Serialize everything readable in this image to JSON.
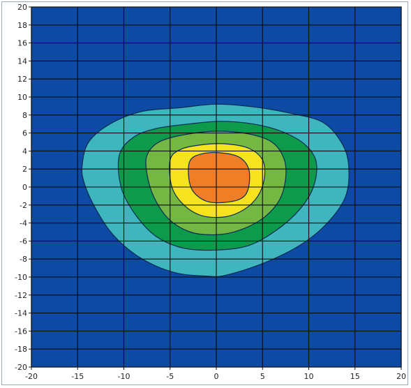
{
  "chart_data": {
    "type": "heatmap",
    "subtype": "filled-contour",
    "title": "",
    "xlabel": "",
    "ylabel": "",
    "xlim": [
      -20,
      20
    ],
    "ylim": [
      -20,
      20
    ],
    "x_ticks": [
      -20,
      -15,
      -10,
      -5,
      0,
      5,
      10,
      15,
      20
    ],
    "y_ticks": [
      -20,
      -18,
      -16,
      -14,
      -12,
      -10,
      -8,
      -6,
      -4,
      -2,
      0,
      2,
      4,
      6,
      8,
      10,
      12,
      14,
      16,
      18,
      20
    ],
    "grid": true,
    "colors": {
      "background": "#0d4aa3",
      "gridline": "#0a0a0a",
      "contour_edge": "#0a2a55",
      "plot_border": "#1a1a1a"
    },
    "levels": [
      {
        "level": 1,
        "color": "#3fb6bd",
        "boundary": [
          [
            -14.5,
            2.5
          ],
          [
            -13.8,
            5.0
          ],
          [
            -11.5,
            7.0
          ],
          [
            -8.0,
            8.4
          ],
          [
            -4.0,
            8.8
          ],
          [
            0.0,
            9.2
          ],
          [
            4.0,
            8.9
          ],
          [
            8.0,
            8.2
          ],
          [
            11.5,
            7.2
          ],
          [
            13.5,
            5.0
          ],
          [
            14.3,
            2.5
          ],
          [
            14.0,
            -1.0
          ],
          [
            12.0,
            -4.0
          ],
          [
            9.0,
            -6.5
          ],
          [
            5.0,
            -8.5
          ],
          [
            1.0,
            -9.8
          ],
          [
            -1.0,
            -9.9
          ],
          [
            -4.5,
            -9.5
          ],
          [
            -8.0,
            -8.0
          ],
          [
            -11.0,
            -5.5
          ],
          [
            -13.0,
            -2.5
          ],
          [
            -14.3,
            0.5
          ]
        ]
      },
      {
        "level": 2,
        "color": "#0d9a4a",
        "boundary": [
          [
            -10.5,
            3.5
          ],
          [
            -9.0,
            5.5
          ],
          [
            -6.5,
            6.5
          ],
          [
            -3.0,
            7.0
          ],
          [
            0.5,
            7.3
          ],
          [
            4.0,
            7.0
          ],
          [
            7.0,
            6.2
          ],
          [
            9.5,
            4.8
          ],
          [
            10.8,
            2.8
          ],
          [
            10.5,
            0.0
          ],
          [
            9.0,
            -2.5
          ],
          [
            6.5,
            -4.8
          ],
          [
            3.5,
            -6.5
          ],
          [
            0.0,
            -7.0
          ],
          [
            -3.5,
            -6.8
          ],
          [
            -6.5,
            -5.5
          ],
          [
            -8.8,
            -3.0
          ],
          [
            -10.3,
            0.0
          ]
        ]
      },
      {
        "level": 3,
        "color": "#74b843",
        "boundary": [
          [
            -7.5,
            3.5
          ],
          [
            -6.2,
            5.0
          ],
          [
            -3.5,
            5.8
          ],
          [
            0.0,
            6.2
          ],
          [
            3.5,
            5.9
          ],
          [
            6.0,
            5.0
          ],
          [
            7.3,
            3.2
          ],
          [
            7.5,
            1.0
          ],
          [
            6.8,
            -1.5
          ],
          [
            5.0,
            -3.5
          ],
          [
            2.5,
            -4.8
          ],
          [
            0.0,
            -5.3
          ],
          [
            -2.8,
            -5.0
          ],
          [
            -5.2,
            -3.5
          ],
          [
            -6.8,
            -1.0
          ],
          [
            -7.5,
            1.5
          ]
        ]
      },
      {
        "level": 4,
        "color": "#f5e320",
        "boundary": [
          [
            -5.0,
            3.0
          ],
          [
            -3.8,
            4.2
          ],
          [
            -1.5,
            4.7
          ],
          [
            1.0,
            4.8
          ],
          [
            3.5,
            4.3
          ],
          [
            5.0,
            3.0
          ],
          [
            5.2,
            1.0
          ],
          [
            4.5,
            -1.0
          ],
          [
            3.0,
            -2.5
          ],
          [
            1.0,
            -3.3
          ],
          [
            -1.5,
            -3.2
          ],
          [
            -3.5,
            -2.0
          ],
          [
            -4.8,
            0.0
          ]
        ]
      },
      {
        "level": 5,
        "color": "#f07e26",
        "boundary": [
          [
            -2.8,
            3.0
          ],
          [
            -1.5,
            3.7
          ],
          [
            0.5,
            3.8
          ],
          [
            2.5,
            3.3
          ],
          [
            3.5,
            2.0
          ],
          [
            3.5,
            0.0
          ],
          [
            2.8,
            -1.2
          ],
          [
            1.0,
            -1.7
          ],
          [
            -1.0,
            -1.6
          ],
          [
            -2.5,
            -0.5
          ],
          [
            -3.0,
            1.2
          ]
        ]
      }
    ]
  }
}
